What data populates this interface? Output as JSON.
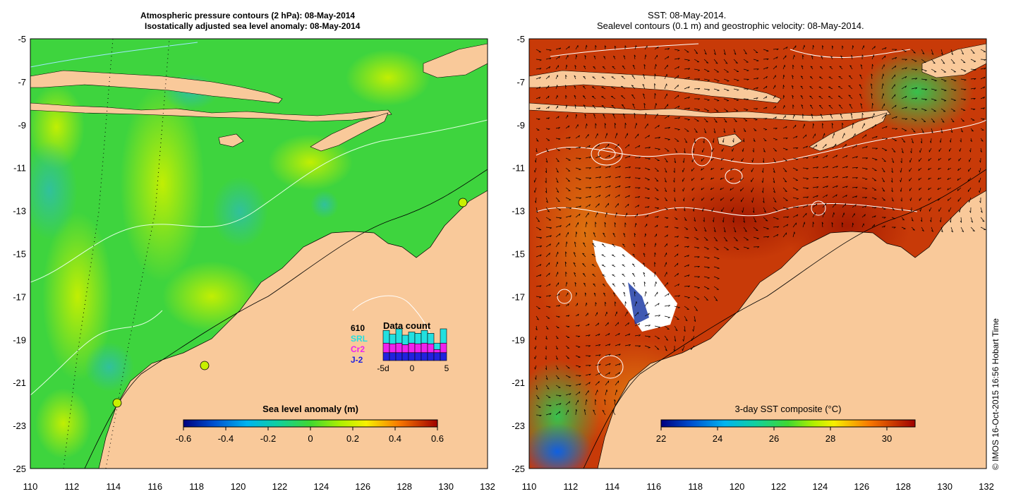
{
  "left_panel": {
    "title_line1": "Atmospheric pressure contours (2 hPa): 08-May-2014",
    "title_line2": "Isostatically adjusted sea level anomaly: 08-May-2014",
    "lat_ticks": [
      "-5",
      "-7",
      "-9",
      "-11",
      "-13",
      "-15",
      "-17",
      "-19",
      "-21",
      "-23",
      "-25"
    ],
    "lon_ticks": [
      "110",
      "112",
      "114",
      "116",
      "118",
      "120",
      "122",
      "124",
      "126",
      "128",
      "130",
      "132"
    ],
    "colorbar": {
      "label": "Sea level anomaly (m)",
      "ticks": [
        "-0.6",
        "-0.4",
        "-0.2",
        "0",
        "0.2",
        "0.4",
        "0.6"
      ],
      "range": [
        -0.6,
        0.6
      ]
    },
    "data_count": {
      "title": "Data count",
      "total": "610",
      "legend": [
        {
          "label": "SRL",
          "color": "#22e0e0"
        },
        {
          "label": "Cr2",
          "color": "#ee22ee"
        },
        {
          "label": "J-2",
          "color": "#2222dd"
        }
      ],
      "axis_ticks": [
        "-5d",
        "0",
        "5"
      ],
      "bars": [
        {
          "j2": 0.25,
          "cr2": 0.3,
          "srl": 0.4
        },
        {
          "j2": 0.25,
          "cr2": 0.28,
          "srl": 0.3
        },
        {
          "j2": 0.25,
          "cr2": 0.3,
          "srl": 0.45
        },
        {
          "j2": 0.25,
          "cr2": 0.25,
          "srl": 0.3
        },
        {
          "j2": 0.25,
          "cr2": 0.3,
          "srl": 0.35
        },
        {
          "j2": 0.25,
          "cr2": 0.28,
          "srl": 0.33
        },
        {
          "j2": 0.25,
          "cr2": 0.3,
          "srl": 0.4
        },
        {
          "j2": 0.25,
          "cr2": 0.28,
          "srl": 0.33
        },
        {
          "j2": 0.25,
          "cr2": 0.1,
          "srl": 0.2
        },
        {
          "j2": 0.25,
          "cr2": 0.3,
          "srl": 0.45
        }
      ]
    }
  },
  "right_panel": {
    "title_line1": "SST: 08-May-2014.",
    "title_line2": "Sealevel contours (0.1 m) and geostrophic velocity: 08-May-2014.",
    "lat_ticks": [
      "-5",
      "-7",
      "-9",
      "-11",
      "-13",
      "-15",
      "-17",
      "-19",
      "-21",
      "-23",
      "-25"
    ],
    "lon_ticks": [
      "110",
      "112",
      "114",
      "116",
      "118",
      "120",
      "122",
      "124",
      "126",
      "128",
      "130",
      "132"
    ],
    "colorbar": {
      "label": "3-day SST composite (°C)",
      "ticks": [
        "22",
        "24",
        "26",
        "28",
        "30"
      ],
      "range": [
        22,
        31
      ]
    }
  },
  "credit": "© IMOS 16-Oct-2015 16:56 Hobart Time",
  "colors": {
    "land": "#f9c99a",
    "ocean_sla": "#3ed43e",
    "ocean_sst": "#c83a08"
  }
}
